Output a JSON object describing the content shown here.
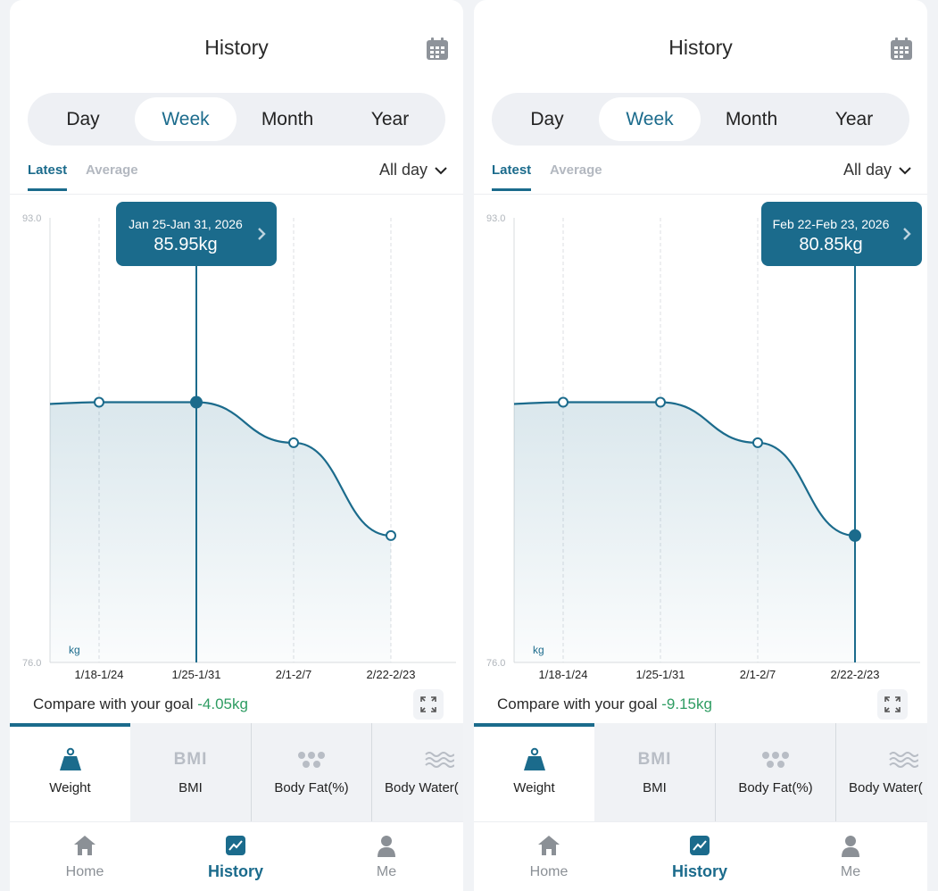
{
  "colors": {
    "accent": "#1b6b8c",
    "goal_diff": "#2e9c62",
    "muted": "#b3b8c0"
  },
  "screens": [
    {
      "title": "History",
      "calendar_icon": "calendar-icon",
      "period_tabs": [
        "Day",
        "Week",
        "Month",
        "Year"
      ],
      "active_period": "Week",
      "sub_tabs": {
        "latest": "Latest",
        "average": "Average",
        "active": "Latest"
      },
      "filter": "All day",
      "tooltip": {
        "date": "Jan 25-Jan 31, 2026",
        "value": "85.95kg"
      },
      "compare": {
        "label": "Compare with your goal ",
        "value": "-4.05kg"
      },
      "metrics": [
        {
          "label": "Weight",
          "icon": "weight-icon"
        },
        {
          "label": "BMI",
          "icon": "bmi-icon",
          "icon_text": "BMI"
        },
        {
          "label": "Body Fat(%)",
          "icon": "body-fat-icon"
        },
        {
          "label": "Body Water(",
          "icon": "body-water-icon"
        }
      ],
      "nav": [
        {
          "label": "Home",
          "icon": "home-icon"
        },
        {
          "label": "History",
          "icon": "history-icon",
          "active": true
        },
        {
          "label": "Me",
          "icon": "person-icon"
        }
      ],
      "chart_data": {
        "type": "area",
        "x": [
          "1/18-1/24",
          "1/25-1/31",
          "2/1-2/7",
          "2/22-2/23"
        ],
        "y_tick_labels": [
          "93.0",
          "76.0"
        ],
        "ylim": [
          76.0,
          93.0
        ],
        "unit_label": "kg",
        "values": [
          85.95,
          85.95,
          84.4,
          80.85
        ],
        "selected_index": 1,
        "grid": "dashed vertical"
      }
    },
    {
      "title": "History",
      "calendar_icon": "calendar-icon",
      "period_tabs": [
        "Day",
        "Week",
        "Month",
        "Year"
      ],
      "active_period": "Week",
      "sub_tabs": {
        "latest": "Latest",
        "average": "Average",
        "active": "Latest"
      },
      "filter": "All day",
      "tooltip": {
        "date": "Feb 22-Feb 23, 2026",
        "value": "80.85kg"
      },
      "compare": {
        "label": "Compare with your goal ",
        "value": "-9.15kg"
      },
      "metrics": [
        {
          "label": "Weight",
          "icon": "weight-icon"
        },
        {
          "label": "BMI",
          "icon": "bmi-icon",
          "icon_text": "BMI"
        },
        {
          "label": "Body Fat(%)",
          "icon": "body-fat-icon"
        },
        {
          "label": "Body Water(",
          "icon": "body-water-icon"
        }
      ],
      "nav": [
        {
          "label": "Home",
          "icon": "home-icon"
        },
        {
          "label": "History",
          "icon": "history-icon",
          "active": true
        },
        {
          "label": "Me",
          "icon": "person-icon"
        }
      ],
      "chart_data": {
        "type": "area",
        "x": [
          "1/18-1/24",
          "1/25-1/31",
          "2/1-2/7",
          "2/22-2/23"
        ],
        "y_tick_labels": [
          "93.0",
          "76.0"
        ],
        "ylim": [
          76.0,
          93.0
        ],
        "unit_label": "kg",
        "values": [
          85.95,
          85.95,
          84.4,
          80.85
        ],
        "selected_index": 3,
        "grid": "dashed vertical"
      }
    }
  ]
}
